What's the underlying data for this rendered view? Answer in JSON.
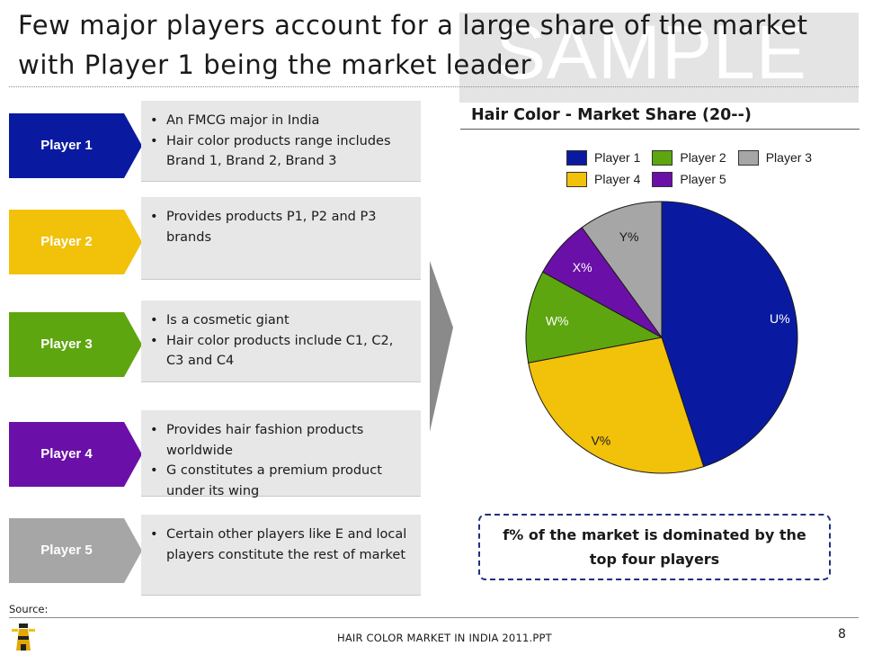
{
  "slide": {
    "title": "Few major players account for a large share of the market with Player 1 being the market leader",
    "watermark": "SAMPLE"
  },
  "players": [
    {
      "label": "Player 1",
      "color": "#0a1aa0",
      "bullets": [
        "An FMCG major in India",
        "Hair color products range includes Brand 1, Brand 2, Brand 3"
      ]
    },
    {
      "label": "Player 2",
      "color": "#f2c10a",
      "bullets": [
        "Provides products P1, P2 and P3 brands"
      ]
    },
    {
      "label": "Player 3",
      "color": "#5ea60f",
      "bullets": [
        "Is a cosmetic giant",
        "Hair color products include C1, C2, C3 and C4"
      ]
    },
    {
      "label": "Player 4",
      "color": "#6a10a8",
      "bullets": [
        "Provides hair fashion products worldwide",
        "G constitutes a premium product under its wing"
      ]
    },
    {
      "label": "Player 5",
      "color": "#a6a6a6",
      "bullets": [
        "Certain other players like E and local players constitute the rest of market"
      ]
    }
  ],
  "chart_data": {
    "type": "pie",
    "title": "Hair Color - Market Share (20--)",
    "legend_position": "top-right",
    "legend": [
      {
        "name": "Player 1",
        "color": "#0a1aa0"
      },
      {
        "name": "Player 2",
        "color": "#5ea60f"
      },
      {
        "name": "Player 3",
        "color": "#a6a6a6"
      },
      {
        "name": "Player 4",
        "color": "#f2c10a"
      },
      {
        "name": "Player 5",
        "color": "#6a10a8"
      }
    ],
    "slices": [
      {
        "series": "Player 1",
        "label": "U%",
        "value": 45,
        "color": "#0a1aa0"
      },
      {
        "series": "Player 4",
        "label": "V%",
        "value": 27,
        "color": "#f2c10a"
      },
      {
        "series": "Player 2",
        "label": "W%",
        "value": 11,
        "color": "#5ea60f"
      },
      {
        "series": "Player 5",
        "label": "X%",
        "value": 7,
        "color": "#6a10a8"
      },
      {
        "series": "Player 3",
        "label": "Y%",
        "value": 10,
        "color": "#a6a6a6"
      }
    ]
  },
  "callout": {
    "text": "f% of the market is dominated by the top four players"
  },
  "footer": {
    "source_label": "Source:",
    "document": "HAIR COLOR MARKET IN INDIA 2011.PPT",
    "page": "8"
  }
}
